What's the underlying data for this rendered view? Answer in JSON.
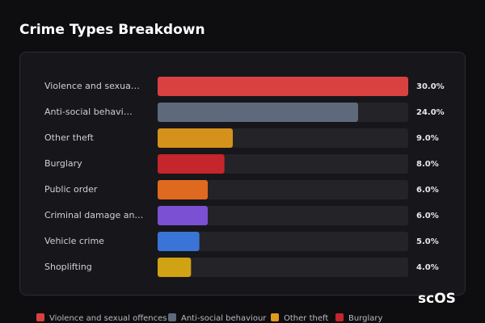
{
  "chart_data": {
    "type": "bar",
    "orientation": "horizontal",
    "title": "Crime Types Breakdown",
    "categories": [
      "Violence and sexua…",
      "Anti-social behavi…",
      "Other theft",
      "Burglary",
      "Public order",
      "Criminal damage an…",
      "Vehicle crime",
      "Shoplifting"
    ],
    "values": [
      30,
      24,
      9,
      8,
      6,
      6,
      5,
      4
    ],
    "value_labels": [
      "30.0%",
      "24.0%",
      "9.0%",
      "8.0%",
      "6.0%",
      "6.0%",
      "5.0%",
      "4.0%"
    ],
    "colors": [
      "#d94141",
      "#5e6a7b",
      "#d4921a",
      "#c4262b",
      "#df6a1f",
      "#7b50d3",
      "#3a74d6",
      "#d0a314"
    ],
    "xlim": [
      0,
      30
    ],
    "legend": [
      {
        "name": "Violence and sexual offences",
        "color": "#d94141"
      },
      {
        "name": "Anti-social behaviour",
        "color": "#5e6a7b"
      },
      {
        "name": "Other theft",
        "color": "#e09a1d"
      },
      {
        "name": "Burglary",
        "color": "#c4262b"
      }
    ],
    "watermark": "scOS"
  }
}
